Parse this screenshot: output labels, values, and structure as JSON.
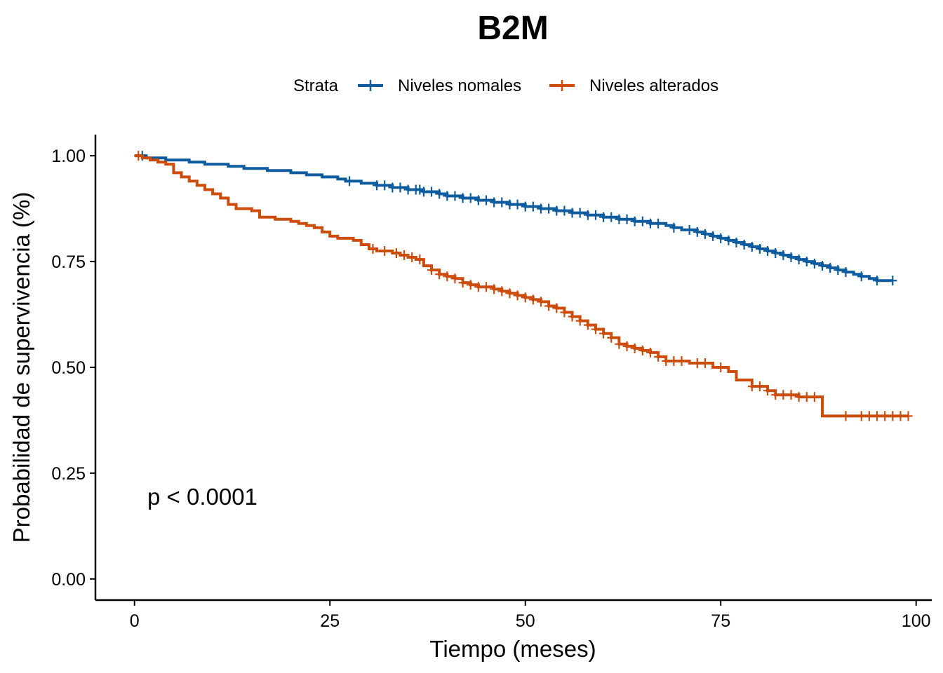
{
  "chart_data": {
    "type": "line",
    "subtype": "kaplan-meier-step",
    "title": "B2M",
    "xlabel": "Tiempo (meses)",
    "ylabel": "Probabilidad de supervivencia (%)",
    "xlim": [
      -5,
      102
    ],
    "ylim": [
      -0.05,
      1.05
    ],
    "xticks": [
      0,
      25,
      50,
      75,
      100
    ],
    "yticks": [
      0.0,
      0.25,
      0.5,
      0.75,
      1.0
    ],
    "xtick_labels": [
      "0",
      "25",
      "50",
      "75",
      "100"
    ],
    "ytick_labels": [
      "0.00",
      "0.25",
      "0.50",
      "0.75",
      "1.00"
    ],
    "grid": false,
    "legend": {
      "position": "top",
      "title": "Strata"
    },
    "annotation": "p < 0.0001",
    "series": [
      {
        "name": "Niveles nomales",
        "color": "#0E5C9D",
        "steps": [
          [
            0,
            1.0
          ],
          [
            1.5,
            0.995
          ],
          [
            4,
            0.99
          ],
          [
            7,
            0.985
          ],
          [
            9,
            0.98
          ],
          [
            12,
            0.975
          ],
          [
            14,
            0.97
          ],
          [
            17,
            0.965
          ],
          [
            20,
            0.96
          ],
          [
            22,
            0.955
          ],
          [
            24,
            0.95
          ],
          [
            26,
            0.945
          ],
          [
            27,
            0.94
          ],
          [
            29,
            0.935
          ],
          [
            31,
            0.93
          ],
          [
            33,
            0.925
          ],
          [
            35,
            0.92
          ],
          [
            37,
            0.915
          ],
          [
            39,
            0.91
          ],
          [
            40,
            0.905
          ],
          [
            42,
            0.9
          ],
          [
            44,
            0.895
          ],
          [
            46,
            0.89
          ],
          [
            48,
            0.885
          ],
          [
            50,
            0.88
          ],
          [
            52,
            0.875
          ],
          [
            54,
            0.87
          ],
          [
            56,
            0.865
          ],
          [
            58,
            0.86
          ],
          [
            60,
            0.855
          ],
          [
            62,
            0.85
          ],
          [
            64,
            0.845
          ],
          [
            66,
            0.84
          ],
          [
            68,
            0.835
          ],
          [
            69,
            0.83
          ],
          [
            70,
            0.825
          ],
          [
            72,
            0.82
          ],
          [
            73,
            0.815
          ],
          [
            74,
            0.81
          ],
          [
            75,
            0.805
          ],
          [
            76,
            0.8
          ],
          [
            77,
            0.795
          ],
          [
            78,
            0.79
          ],
          [
            79,
            0.785
          ],
          [
            80,
            0.78
          ],
          [
            81,
            0.775
          ],
          [
            82,
            0.77
          ],
          [
            83,
            0.765
          ],
          [
            84,
            0.76
          ],
          [
            85,
            0.755
          ],
          [
            86,
            0.75
          ],
          [
            87,
            0.745
          ],
          [
            88,
            0.74
          ],
          [
            89,
            0.735
          ],
          [
            90,
            0.73
          ],
          [
            91,
            0.725
          ],
          [
            92,
            0.72
          ],
          [
            93,
            0.715
          ],
          [
            94,
            0.71
          ],
          [
            95,
            0.705
          ],
          [
            97,
            0.705
          ]
        ],
        "censor_x": [
          1,
          27.5,
          31,
          32,
          33,
          34,
          35,
          36,
          36.5,
          37,
          38,
          39,
          40,
          41,
          42,
          43,
          44,
          45,
          46,
          47,
          48,
          49,
          50,
          51,
          52,
          53,
          54,
          55,
          56,
          57,
          58,
          59,
          60,
          61,
          62,
          63,
          64,
          65,
          66,
          67,
          69,
          71,
          72,
          73,
          74,
          75,
          76,
          77,
          78,
          79,
          80,
          81,
          82,
          83,
          84,
          85,
          86,
          87,
          88,
          89,
          90,
          91,
          93,
          95,
          97
        ]
      },
      {
        "name": "Niveles alterados",
        "color": "#CC4C0C",
        "steps": [
          [
            0,
            1.0
          ],
          [
            1,
            0.995
          ],
          [
            2,
            0.99
          ],
          [
            3,
            0.985
          ],
          [
            4,
            0.98
          ],
          [
            5,
            0.96
          ],
          [
            6,
            0.95
          ],
          [
            7,
            0.94
          ],
          [
            8,
            0.93
          ],
          [
            9,
            0.92
          ],
          [
            10,
            0.91
          ],
          [
            11,
            0.9
          ],
          [
            12,
            0.885
          ],
          [
            13,
            0.875
          ],
          [
            15,
            0.87
          ],
          [
            16,
            0.855
          ],
          [
            18,
            0.85
          ],
          [
            20,
            0.845
          ],
          [
            21,
            0.84
          ],
          [
            22,
            0.835
          ],
          [
            23,
            0.83
          ],
          [
            24,
            0.82
          ],
          [
            25,
            0.81
          ],
          [
            26,
            0.805
          ],
          [
            28,
            0.8
          ],
          [
            29,
            0.79
          ],
          [
            30,
            0.78
          ],
          [
            31,
            0.775
          ],
          [
            33,
            0.77
          ],
          [
            34,
            0.765
          ],
          [
            35,
            0.76
          ],
          [
            36,
            0.755
          ],
          [
            37,
            0.74
          ],
          [
            38,
            0.73
          ],
          [
            39,
            0.72
          ],
          [
            40,
            0.715
          ],
          [
            41,
            0.71
          ],
          [
            42,
            0.7
          ],
          [
            43,
            0.695
          ],
          [
            44,
            0.69
          ],
          [
            46,
            0.685
          ],
          [
            47,
            0.68
          ],
          [
            48,
            0.675
          ],
          [
            49,
            0.67
          ],
          [
            50,
            0.665
          ],
          [
            51,
            0.66
          ],
          [
            52,
            0.655
          ],
          [
            53,
            0.645
          ],
          [
            54,
            0.64
          ],
          [
            55,
            0.63
          ],
          [
            56,
            0.62
          ],
          [
            57,
            0.61
          ],
          [
            58,
            0.6
          ],
          [
            59,
            0.59
          ],
          [
            60,
            0.58
          ],
          [
            61,
            0.57
          ],
          [
            62,
            0.555
          ],
          [
            63,
            0.55
          ],
          [
            64,
            0.545
          ],
          [
            65,
            0.54
          ],
          [
            66,
            0.535
          ],
          [
            67,
            0.525
          ],
          [
            68,
            0.515
          ],
          [
            71,
            0.51
          ],
          [
            74,
            0.5
          ],
          [
            76,
            0.49
          ],
          [
            77,
            0.47
          ],
          [
            79,
            0.455
          ],
          [
            81,
            0.445
          ],
          [
            82,
            0.435
          ],
          [
            85,
            0.43
          ],
          [
            88,
            0.385
          ],
          [
            99,
            0.385
          ]
        ],
        "censor_x": [
          0.5,
          30.5,
          32,
          33.5,
          34.5,
          35.5,
          36.5,
          38,
          39,
          40,
          41,
          42,
          43,
          44,
          45,
          46,
          47,
          48,
          49,
          50,
          51,
          52,
          53,
          54,
          55,
          56,
          57,
          58,
          59,
          60,
          61,
          62,
          63,
          64,
          65,
          66,
          67,
          68,
          69,
          70,
          72,
          73,
          75,
          79,
          80,
          81,
          82,
          83,
          84,
          85,
          86,
          87,
          91,
          93,
          94,
          95,
          96,
          97,
          98,
          99
        ]
      }
    ]
  }
}
